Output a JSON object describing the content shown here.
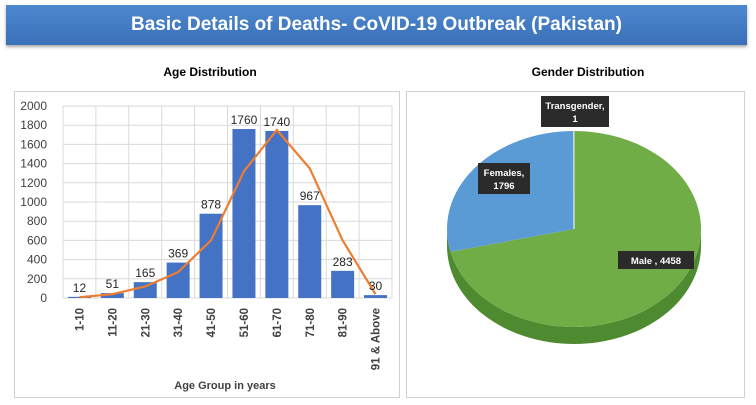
{
  "header": {
    "title": "Basic Details of Deaths- CoVID-19 Outbreak (Pakistan)"
  },
  "colors": {
    "banner": "#4a84cc",
    "bar": "#4472c4",
    "line": "#ed7d31",
    "male": "#70ad47",
    "female": "#5b9bd5"
  },
  "chart_data": [
    {
      "type": "bar",
      "title": "Age Distribution",
      "xlabel": "Age Group in years",
      "ylabel": "",
      "ylim": [
        0,
        2000
      ],
      "yticks": [
        "0",
        "200",
        "400",
        "600",
        "800",
        "1000",
        "1200",
        "1400",
        "1600",
        "1800",
        "2000"
      ],
      "categories": [
        "1-10",
        "11-20",
        "21-30",
        "31-40",
        "41-50",
        "51-60",
        "61-70",
        "71-80",
        "81-90",
        "91 & Above"
      ],
      "values": [
        12,
        51,
        165,
        369,
        878,
        1760,
        1740,
        967,
        283,
        30
      ],
      "trendline": [
        8,
        40,
        120,
        270,
        600,
        1320,
        1750,
        1350,
        600,
        40
      ],
      "grid": true
    },
    {
      "type": "pie",
      "title": "Gender Distribution",
      "slices": [
        {
          "name": "Male",
          "value": 4458,
          "label": "Male , 4458"
        },
        {
          "name": "Females",
          "value": 1796,
          "label_line1": "Females,",
          "label_line2": "1796"
        },
        {
          "name": "Transgender",
          "value": 1,
          "label_line1": "Transgender,",
          "label_line2": "1"
        }
      ]
    }
  ]
}
